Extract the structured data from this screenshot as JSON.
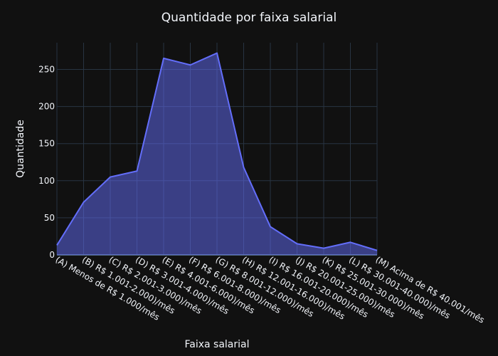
{
  "chart_data": {
    "type": "area",
    "title": "Quantidade por faixa salarial",
    "xlabel": "Faixa salarial",
    "ylabel": "Quantidade",
    "categories": [
      "(A) Menos de R$ 1.000/mês",
      "(B) R$ 1.001-2.000)/mês",
      "(C) R$ 2.001-3.000)/mês",
      "(D) R$ 3.001-4.000)/mês",
      "(E) R$ 4.001-6.000)/mês",
      "(F) R$ 6.001-8.000)/mês",
      "(G) R$ 8.001-12.000)/mês",
      "(H) R$ 12.001-16.000)/mês",
      "(I) R$ 16.001-20.000)/mês",
      "(J) R$ 20.001-25.000)/mês",
      "(K) R$ 25.001-30.000)/mês",
      "(L) R$ 30.001-40.000)/mês",
      "(M) Acima de R$ 40.001/mês"
    ],
    "values": [
      13,
      71,
      105,
      113,
      265,
      256,
      272,
      118,
      38,
      15,
      9,
      17,
      6
    ],
    "yticks": [
      0,
      50,
      100,
      150,
      200,
      250
    ],
    "ylim": [
      0,
      286
    ],
    "grid": true,
    "colors": {
      "line": "#636efa",
      "fill": "rgba(99,110,250,0.5)",
      "background": "#111111",
      "grid": "#283442",
      "text": "#f2f5fa"
    }
  }
}
